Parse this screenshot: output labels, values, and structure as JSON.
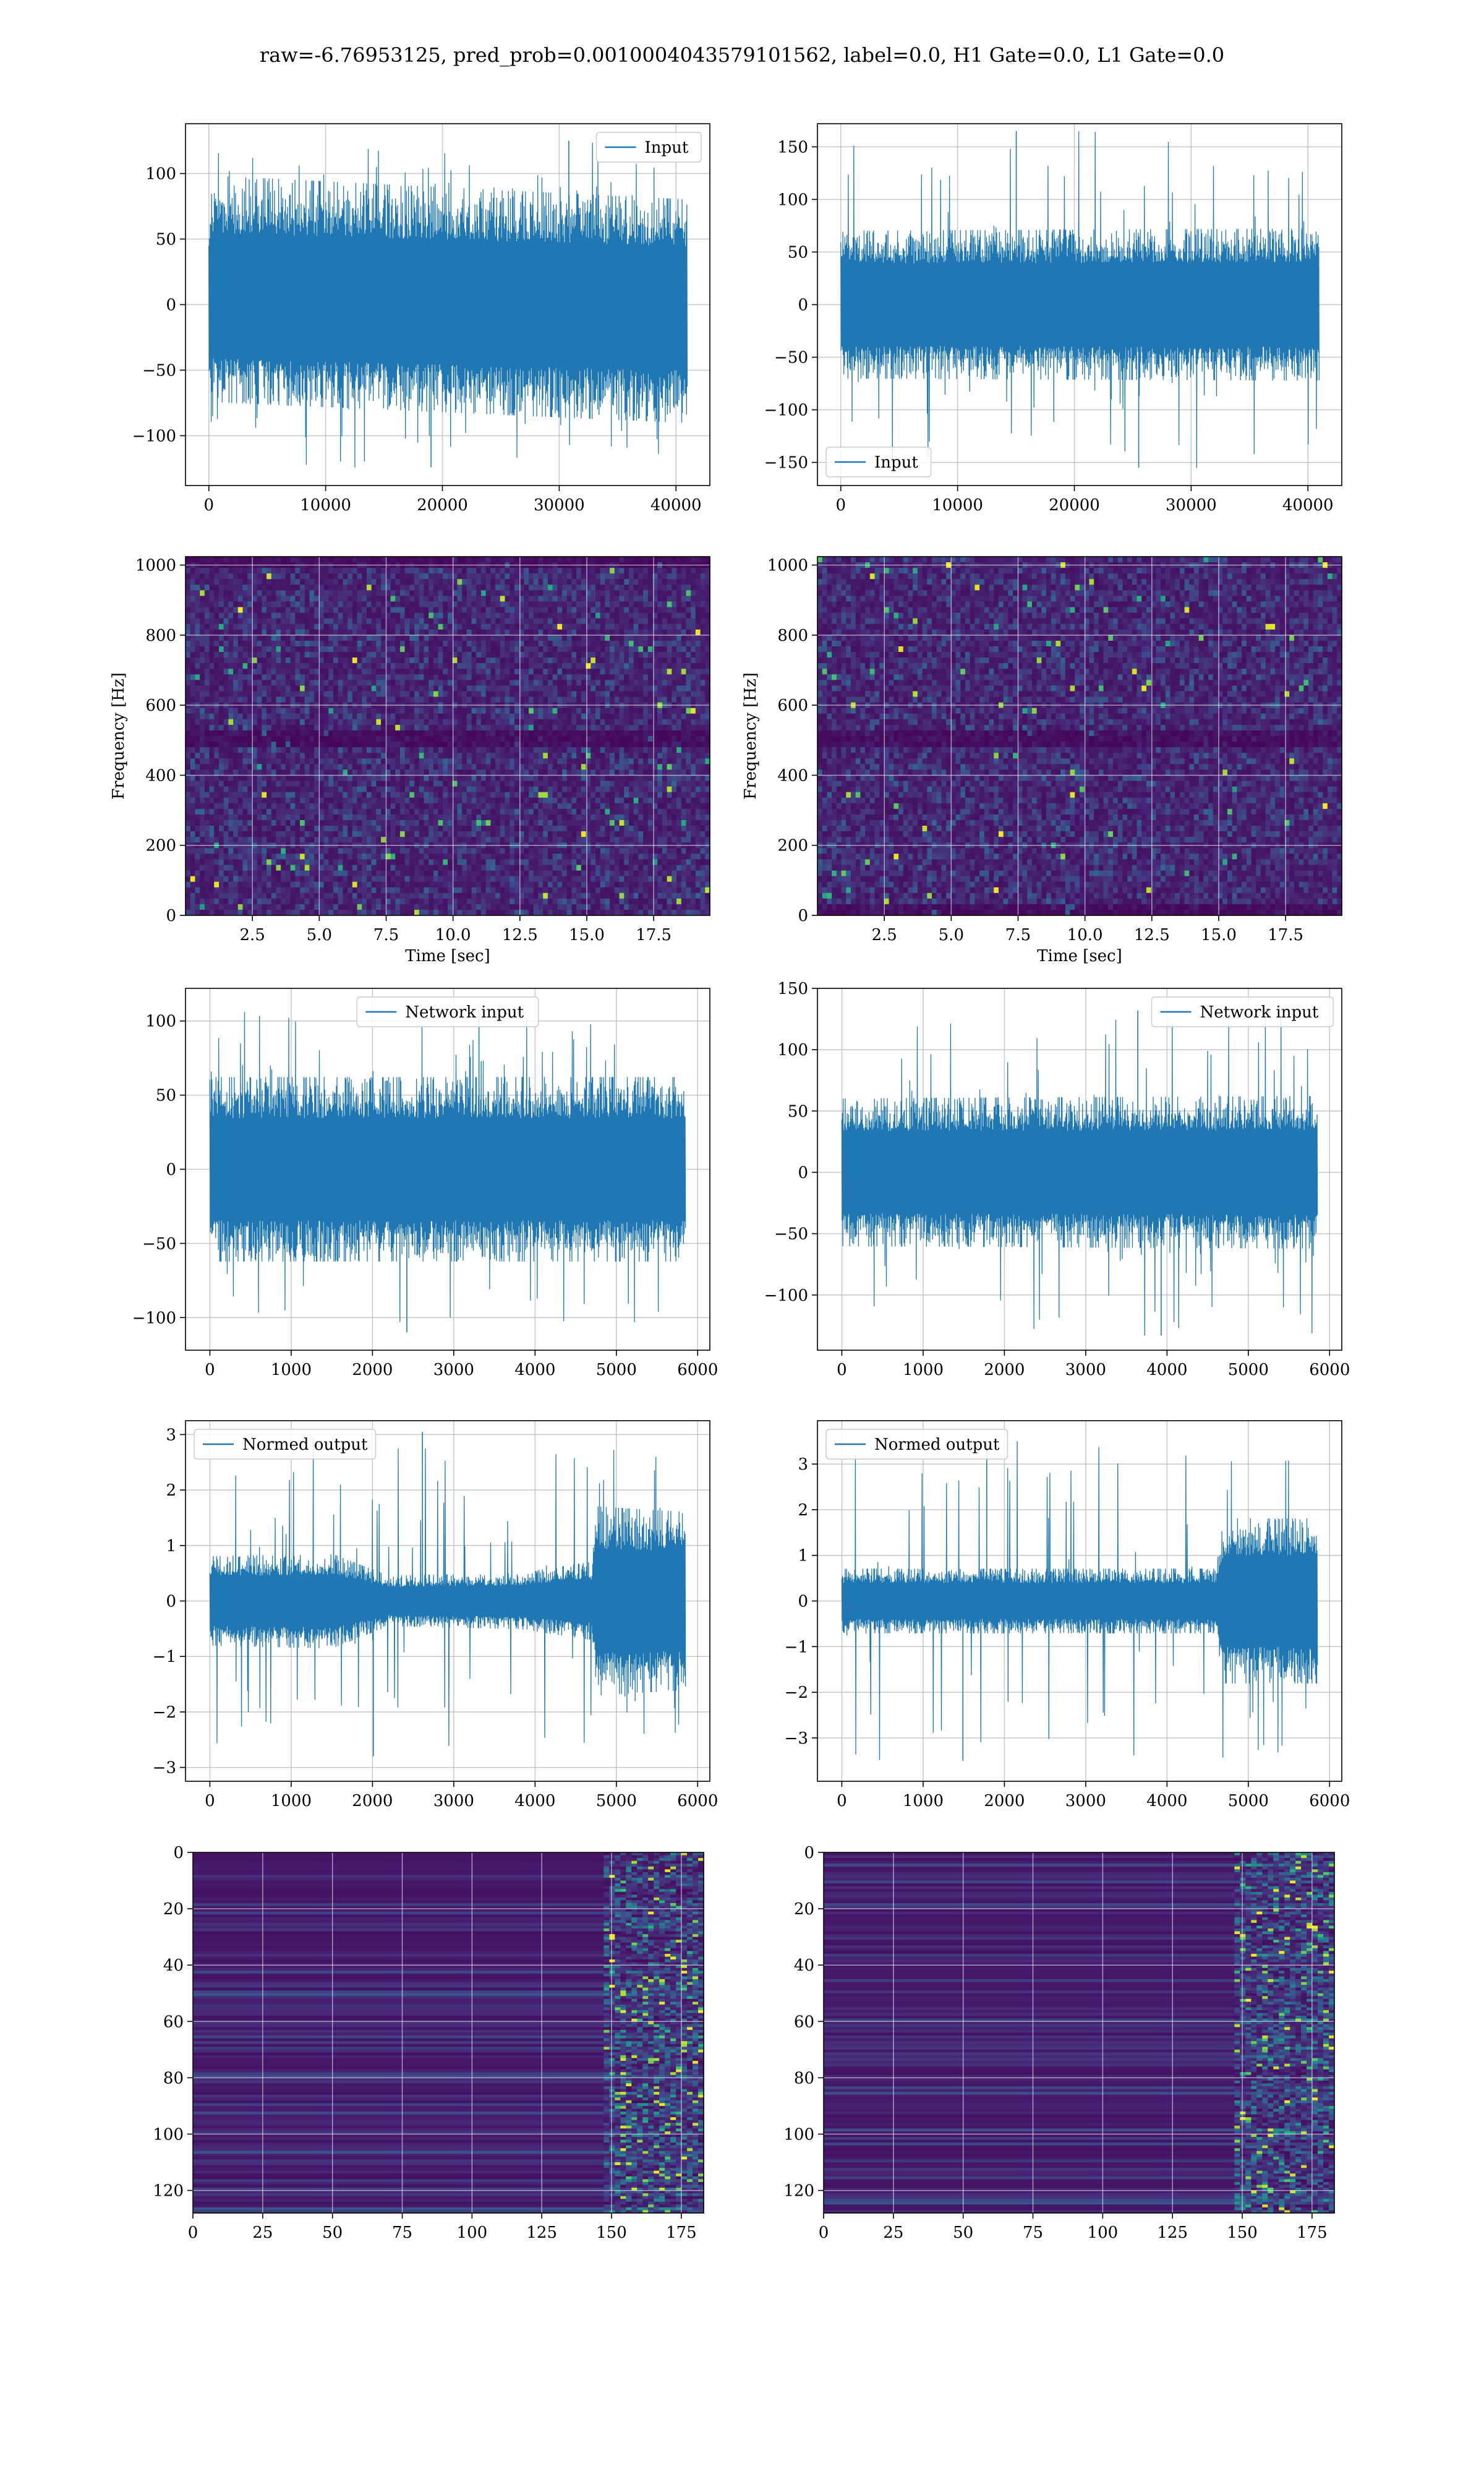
{
  "figure": {
    "title": "raw=-6.76953125, pred_prob=0.0010004043579101562, label=0.0, H1 Gate=0.0, L1 Gate=0.0"
  },
  "chart_data": [
    {
      "id": "p1",
      "type": "line",
      "legend": "Input",
      "legend_position": "upper right",
      "xlim": [
        -2000,
        42900
      ],
      "ylim": [
        -138,
        138
      ],
      "x_range": [
        0,
        40960
      ],
      "xticks": [
        0,
        10000,
        20000,
        30000,
        40000
      ],
      "xtick_labels": [
        "0",
        "10000",
        "20000",
        "30000",
        "40000"
      ],
      "yticks": [
        -100,
        -50,
        0,
        50,
        100
      ],
      "ytick_labels": [
        "−100",
        "−50",
        "0",
        "50",
        "100"
      ],
      "grid": true,
      "envelope": {
        "upper": [
          [
            0,
            72
          ],
          [
            500,
            98
          ],
          [
            40960,
            80
          ]
        ],
        "lower": [
          [
            0,
            -74
          ],
          [
            40960,
            -90
          ]
        ],
        "spike_up_max": 125,
        "spike_down_min": -124,
        "seed": 11
      },
      "color": "#1f77b4",
      "xlabel": "",
      "ylabel": ""
    },
    {
      "id": "p2",
      "type": "line",
      "legend": "Input",
      "legend_position": "lower left",
      "xlim": [
        -2000,
        42900
      ],
      "ylim": [
        -172,
        172
      ],
      "x_range": [
        0,
        40960
      ],
      "xticks": [
        0,
        10000,
        20000,
        30000,
        40000
      ],
      "xtick_labels": [
        "0",
        "10000",
        "20000",
        "30000",
        "40000"
      ],
      "yticks": [
        -150,
        -100,
        -50,
        0,
        50,
        100,
        150
      ],
      "ytick_labels": [
        "−150",
        "−100",
        "−50",
        "0",
        "50",
        "100",
        "150"
      ],
      "grid": true,
      "envelope": {
        "upper": [
          [
            0,
            70
          ],
          [
            40960,
            72
          ]
        ],
        "lower": [
          [
            0,
            -70
          ],
          [
            40960,
            -72
          ]
        ],
        "spike_up_max": 165,
        "spike_down_min": -155,
        "seed": 23
      },
      "color": "#1f77b4",
      "xlabel": "",
      "ylabel": ""
    },
    {
      "id": "p3",
      "type": "heatmap",
      "colormap": "viridis",
      "xlim": [
        0,
        19.6
      ],
      "ylim": [
        0,
        1024
      ],
      "xticks": [
        2.5,
        5.0,
        7.5,
        10.0,
        12.5,
        15.0,
        17.5
      ],
      "xtick_labels": [
        "2.5",
        "5.0",
        "7.5",
        "10.0",
        "12.5",
        "15.0",
        "17.5"
      ],
      "yticks": [
        0,
        200,
        400,
        600,
        800,
        1000
      ],
      "ytick_labels": [
        "0",
        "200",
        "400",
        "600",
        "800",
        "1000"
      ],
      "xlabel": "Time [sec]",
      "ylabel": "Frequency [Hz]",
      "grid": true,
      "dark_bands": [
        [
          490,
          512
        ],
        [
          1000,
          1024
        ]
      ],
      "intensity": 0.25,
      "seed": 31
    },
    {
      "id": "p4",
      "type": "heatmap",
      "colormap": "viridis",
      "xlim": [
        0,
        19.6
      ],
      "ylim": [
        0,
        1024
      ],
      "xticks": [
        2.5,
        5.0,
        7.5,
        10.0,
        12.5,
        15.0,
        17.5
      ],
      "xtick_labels": [
        "2.5",
        "5.0",
        "7.5",
        "10.0",
        "12.5",
        "15.0",
        "17.5"
      ],
      "yticks": [
        0,
        200,
        400,
        600,
        800,
        1000
      ],
      "ytick_labels": [
        "0",
        "200",
        "400",
        "600",
        "800",
        "1000"
      ],
      "xlabel": "Time [sec]",
      "ylabel": "Frequency [Hz]",
      "grid": true,
      "dark_bands": [
        [
          490,
          512
        ],
        [
          0,
          20
        ]
      ],
      "intensity": 0.25,
      "seed": 47
    },
    {
      "id": "p5",
      "type": "line",
      "legend": "Network input",
      "legend_position": "upper center",
      "xlim": [
        -300,
        6150
      ],
      "ylim": [
        -122,
        122
      ],
      "x_range": [
        0,
        5850
      ],
      "xticks": [
        0,
        1000,
        2000,
        3000,
        4000,
        5000,
        6000
      ],
      "xtick_labels": [
        "0",
        "1000",
        "2000",
        "3000",
        "4000",
        "5000",
        "6000"
      ],
      "yticks": [
        -100,
        -50,
        0,
        50,
        100
      ],
      "ytick_labels": [
        "−100",
        "−50",
        "0",
        "50",
        "100"
      ],
      "grid": true,
      "envelope": {
        "upper": [
          [
            0,
            62
          ],
          [
            5850,
            62
          ]
        ],
        "lower": [
          [
            0,
            -62
          ],
          [
            5850,
            -62
          ]
        ],
        "spike_up_max": 107,
        "spike_down_min": -110,
        "seed": 57
      },
      "color": "#1f77b4",
      "xlabel": "",
      "ylabel": ""
    },
    {
      "id": "p6",
      "type": "line",
      "legend": "Network input",
      "legend_position": "upper right",
      "xlim": [
        -300,
        6150
      ],
      "ylim": [
        -145,
        150
      ],
      "x_range": [
        0,
        5850
      ],
      "xticks": [
        0,
        1000,
        2000,
        3000,
        4000,
        5000,
        6000
      ],
      "xtick_labels": [
        "0",
        "1000",
        "2000",
        "3000",
        "4000",
        "5000",
        "6000"
      ],
      "yticks": [
        -100,
        -50,
        0,
        50,
        100,
        150
      ],
      "ytick_labels": [
        "−100",
        "−50",
        "0",
        "50",
        "100",
        "150"
      ],
      "grid": true,
      "envelope": {
        "upper": [
          [
            0,
            60
          ],
          [
            5850,
            62
          ]
        ],
        "lower": [
          [
            0,
            -60
          ],
          [
            5850,
            -62
          ]
        ],
        "spike_up_max": 132,
        "spike_down_min": -133,
        "seed": 61
      },
      "color": "#1f77b4",
      "xlabel": "",
      "ylabel": ""
    },
    {
      "id": "p7",
      "type": "line",
      "legend": "Normed output",
      "legend_position": "upper left",
      "xlim": [
        -300,
        6150
      ],
      "ylim": [
        -3.25,
        3.25
      ],
      "x_range": [
        0,
        5850
      ],
      "xticks": [
        0,
        1000,
        2000,
        3000,
        4000,
        5000,
        6000
      ],
      "xtick_labels": [
        "0",
        "1000",
        "2000",
        "3000",
        "4000",
        "5000",
        "6000"
      ],
      "yticks": [
        -3,
        -2,
        -1,
        0,
        1,
        2,
        3
      ],
      "ytick_labels": [
        "−3",
        "−2",
        "−1",
        "0",
        "1",
        "2",
        "3"
      ],
      "grid": true,
      "envelope": {
        "upper": [
          [
            0,
            0.8
          ],
          [
            1500,
            0.85
          ],
          [
            2200,
            0.45
          ],
          [
            3800,
            0.5
          ],
          [
            4700,
            0.7
          ],
          [
            4750,
            1.7
          ],
          [
            5850,
            1.6
          ]
        ],
        "lower": [
          [
            0,
            -0.8
          ],
          [
            1500,
            -0.85
          ],
          [
            2200,
            -0.45
          ],
          [
            3800,
            -0.5
          ],
          [
            4700,
            -0.7
          ],
          [
            4750,
            -1.7
          ],
          [
            5850,
            -1.6
          ]
        ],
        "spike_up_max": 3.05,
        "spike_down_min": -2.8,
        "seed": 71
      },
      "color": "#1f77b4",
      "xlabel": "",
      "ylabel": ""
    },
    {
      "id": "p8",
      "type": "line",
      "legend": "Normed output",
      "legend_position": "upper left",
      "xlim": [
        -300,
        6150
      ],
      "ylim": [
        -3.95,
        3.95
      ],
      "x_range": [
        0,
        5850
      ],
      "xticks": [
        0,
        1000,
        2000,
        3000,
        4000,
        5000,
        6000
      ],
      "xtick_labels": [
        "0",
        "1000",
        "2000",
        "3000",
        "4000",
        "5000",
        "6000"
      ],
      "yticks": [
        -3,
        -2,
        -1,
        0,
        1,
        2,
        3
      ],
      "ytick_labels": [
        "−3",
        "−2",
        "−1",
        "0",
        "1",
        "2",
        "3"
      ],
      "grid": true,
      "envelope": {
        "upper": [
          [
            0,
            0.7
          ],
          [
            4600,
            0.7
          ],
          [
            4700,
            1.8
          ],
          [
            5850,
            1.8
          ]
        ],
        "lower": [
          [
            0,
            -0.7
          ],
          [
            4600,
            -0.7
          ],
          [
            4700,
            -1.8
          ],
          [
            5850,
            -1.8
          ]
        ],
        "spike_up_max": 3.5,
        "spike_down_min": -3.5,
        "seed": 83
      },
      "color": "#1f77b4",
      "xlabel": "",
      "ylabel": ""
    },
    {
      "id": "p9",
      "type": "heatmap",
      "colormap": "viridis",
      "xlim": [
        0,
        183
      ],
      "ylim": [
        128,
        0
      ],
      "xticks": [
        0,
        25,
        50,
        75,
        100,
        125,
        150,
        175
      ],
      "xtick_labels": [
        "0",
        "25",
        "50",
        "75",
        "100",
        "125",
        "150",
        "175"
      ],
      "yticks": [
        0,
        20,
        40,
        60,
        80,
        100,
        120
      ],
      "ytick_labels": [
        "0",
        "20",
        "40",
        "60",
        "80",
        "100",
        "120"
      ],
      "xlabel": "",
      "ylabel": "",
      "grid": true,
      "activation_onset": 147,
      "seed": 97
    },
    {
      "id": "p10",
      "type": "heatmap",
      "colormap": "viridis",
      "xlim": [
        0,
        183
      ],
      "ylim": [
        128,
        0
      ],
      "xticks": [
        0,
        25,
        50,
        75,
        100,
        125,
        150,
        175
      ],
      "xtick_labels": [
        "0",
        "25",
        "50",
        "75",
        "100",
        "125",
        "150",
        "175"
      ],
      "yticks": [
        0,
        20,
        40,
        60,
        80,
        100,
        120
      ],
      "ytick_labels": [
        "0",
        "20",
        "40",
        "60",
        "80",
        "100",
        "120"
      ],
      "xlabel": "",
      "ylabel": "",
      "grid": true,
      "activation_onset": 147,
      "seed": 109
    }
  ]
}
